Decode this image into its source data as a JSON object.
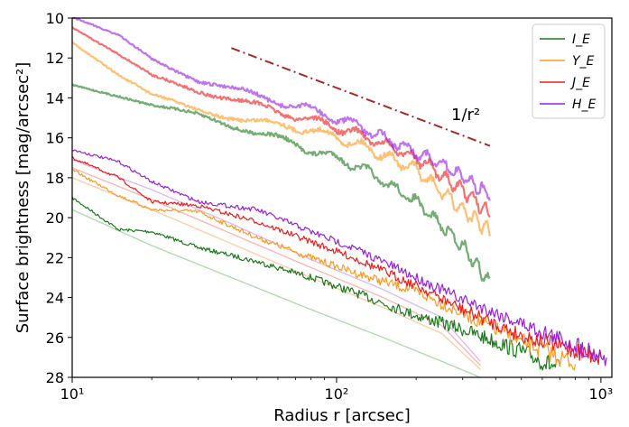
{
  "chart_data": {
    "type": "line",
    "xlabel": "Radius r [arcsec]",
    "ylabel": "Surface brightness [mag/arcsec²]",
    "xscale": "log",
    "xlim": [
      10,
      1100
    ],
    "ylim": [
      28,
      10
    ],
    "y_inverted": true,
    "grid": false,
    "legend_position": "top-right",
    "x_ticks": [
      {
        "value": 10,
        "label": "10¹"
      },
      {
        "value": 100,
        "label": "10²"
      },
      {
        "value": 1000,
        "label": "10³"
      }
    ],
    "y_ticks": [
      10,
      12,
      14,
      16,
      18,
      20,
      22,
      24,
      26,
      28
    ],
    "annotation": {
      "text": "1/r²",
      "line_from": [
        40,
        11.5
      ],
      "line_to": [
        380,
        16.4
      ],
      "color": "#a52a2a"
    },
    "series": [
      {
        "name": "I_E",
        "color": "#1b7a1b",
        "group": "upper",
        "x": [
          10,
          15,
          20,
          30,
          50,
          80,
          120,
          200,
          300,
          380
        ],
        "y": [
          13.3,
          13.9,
          14.4,
          14.9,
          15.7,
          16.6,
          17.4,
          19.2,
          21.4,
          23.3
        ]
      },
      {
        "name": "Y_E",
        "color": "#ff9a1f",
        "group": "upper",
        "x": [
          10,
          15,
          20,
          30,
          50,
          80,
          120,
          200,
          300,
          380
        ],
        "y": [
          11.2,
          12.9,
          13.9,
          14.6,
          15.2,
          15.6,
          16.3,
          17.6,
          19.6,
          20.7
        ]
      },
      {
        "name": "J_E",
        "color": "#ee1c1c",
        "group": "upper",
        "x": [
          10,
          15,
          20,
          30,
          50,
          80,
          120,
          200,
          300,
          380
        ],
        "y": [
          10.5,
          11.9,
          12.9,
          13.6,
          14.4,
          15.1,
          15.8,
          17.0,
          18.6,
          19.8
        ]
      },
      {
        "name": "H_E",
        "color": "#9a1ee0",
        "group": "upper",
        "x": [
          10,
          15,
          20,
          30,
          50,
          80,
          120,
          200,
          300,
          380
        ],
        "y": [
          10.0,
          10.9,
          12.0,
          13.1,
          13.9,
          14.6,
          15.4,
          16.7,
          17.9,
          18.9
        ]
      },
      {
        "name": "",
        "color": "#1b7a1b",
        "group": "lower",
        "x": [
          10,
          15,
          20,
          30,
          50,
          80,
          120,
          200,
          300,
          500,
          700
        ],
        "y": [
          19.0,
          20.6,
          20.7,
          21.5,
          22.2,
          23.0,
          23.8,
          24.9,
          25.6,
          26.7,
          27.6
        ]
      },
      {
        "name": "",
        "color": "#ff9a1f",
        "group": "lower",
        "x": [
          10,
          15,
          20,
          30,
          50,
          80,
          120,
          200,
          300,
          500,
          800
        ],
        "y": [
          17.6,
          18.9,
          19.6,
          19.7,
          21.0,
          22.0,
          22.8,
          23.7,
          24.8,
          26.2,
          27.3
        ]
      },
      {
        "name": "",
        "color": "#ee1c1c",
        "group": "lower",
        "x": [
          10,
          15,
          20,
          30,
          50,
          80,
          120,
          200,
          300,
          500,
          1000
        ],
        "y": [
          17.0,
          18.0,
          19.2,
          19.4,
          20.2,
          21.2,
          22.1,
          23.4,
          24.6,
          25.9,
          27.0
        ]
      },
      {
        "name": "",
        "color": "#9a1ee0",
        "group": "lower",
        "x": [
          10,
          15,
          20,
          30,
          50,
          80,
          120,
          200,
          300,
          500,
          1050
        ],
        "y": [
          16.6,
          17.2,
          18.2,
          19.2,
          19.6,
          20.7,
          21.6,
          23.0,
          24.1,
          25.3,
          27.0
        ]
      },
      {
        "name": "",
        "color": "#a7d7a7",
        "group": "model",
        "x": [
          10,
          20,
          40,
          80,
          150,
          250,
          350
        ],
        "y": [
          19.6,
          21.4,
          23.0,
          24.6,
          26.0,
          27.2,
          28.0
        ]
      },
      {
        "name": "",
        "color": "#fccaa0",
        "group": "model",
        "x": [
          10,
          20,
          40,
          80,
          150,
          250,
          350
        ],
        "y": [
          18.0,
          19.6,
          21.3,
          23.0,
          24.5,
          25.8,
          27.6
        ]
      },
      {
        "name": "",
        "color": "#f7b0b0",
        "group": "model",
        "x": [
          10,
          20,
          40,
          80,
          150,
          250,
          350
        ],
        "y": [
          17.5,
          19.1,
          20.8,
          22.5,
          24.0,
          25.4,
          27.4
        ]
      },
      {
        "name": "",
        "color": "#dcb2f3",
        "group": "model",
        "x": [
          10,
          20,
          40,
          80,
          150,
          250,
          350
        ],
        "y": [
          17.1,
          18.6,
          20.3,
          22.1,
          23.6,
          25.0,
          27.2
        ]
      }
    ]
  }
}
